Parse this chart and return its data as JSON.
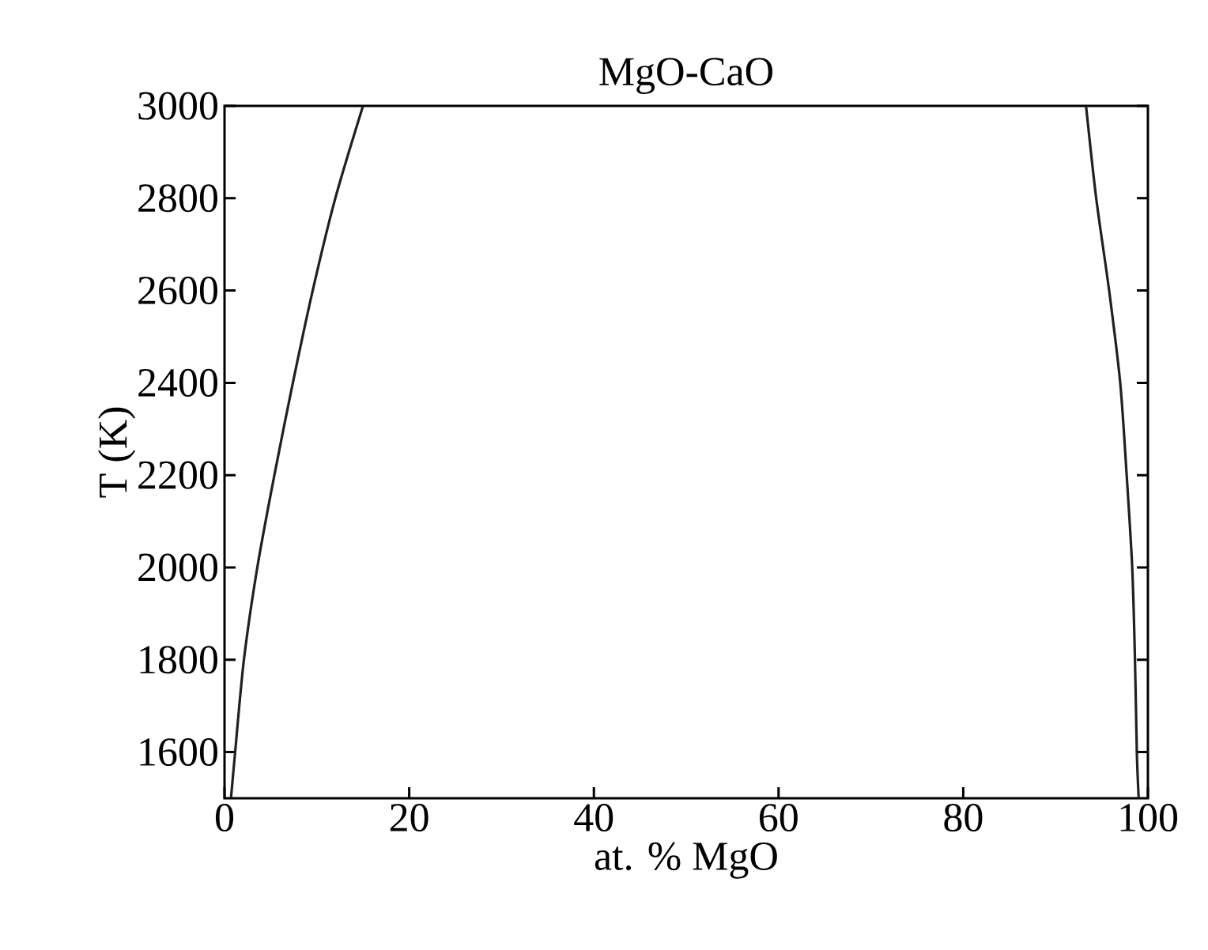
{
  "chart_data": {
    "type": "line",
    "title": "MgO-CaO",
    "xlabel": "at. % MgO",
    "ylabel": "T (K)",
    "xlim": [
      0,
      100
    ],
    "ylim": [
      1500,
      3000
    ],
    "xticks": [
      0,
      20,
      40,
      60,
      80,
      100
    ],
    "yticks": [
      1600,
      1800,
      2000,
      2200,
      2400,
      2600,
      2800,
      3000
    ],
    "grid": false,
    "marker": "none",
    "line_style": "solid",
    "series": [
      {
        "color": "#231f20",
        "x": [
          0.7,
          1.15,
          2.1,
          3.55,
          5.4,
          7.4,
          9.55,
          12.0,
          15.0
        ],
        "values": [
          1500,
          1600,
          1800,
          2000,
          2200,
          2400,
          2600,
          2800,
          3000
        ]
      },
      {
        "color": "#231f20",
        "x": [
          99.0,
          98.8,
          98.6,
          98.3,
          97.7,
          97.0,
          95.8,
          94.4,
          93.3
        ],
        "values": [
          1500,
          1600,
          1800,
          2000,
          2200,
          2400,
          2600,
          2800,
          3000
        ]
      }
    ]
  }
}
